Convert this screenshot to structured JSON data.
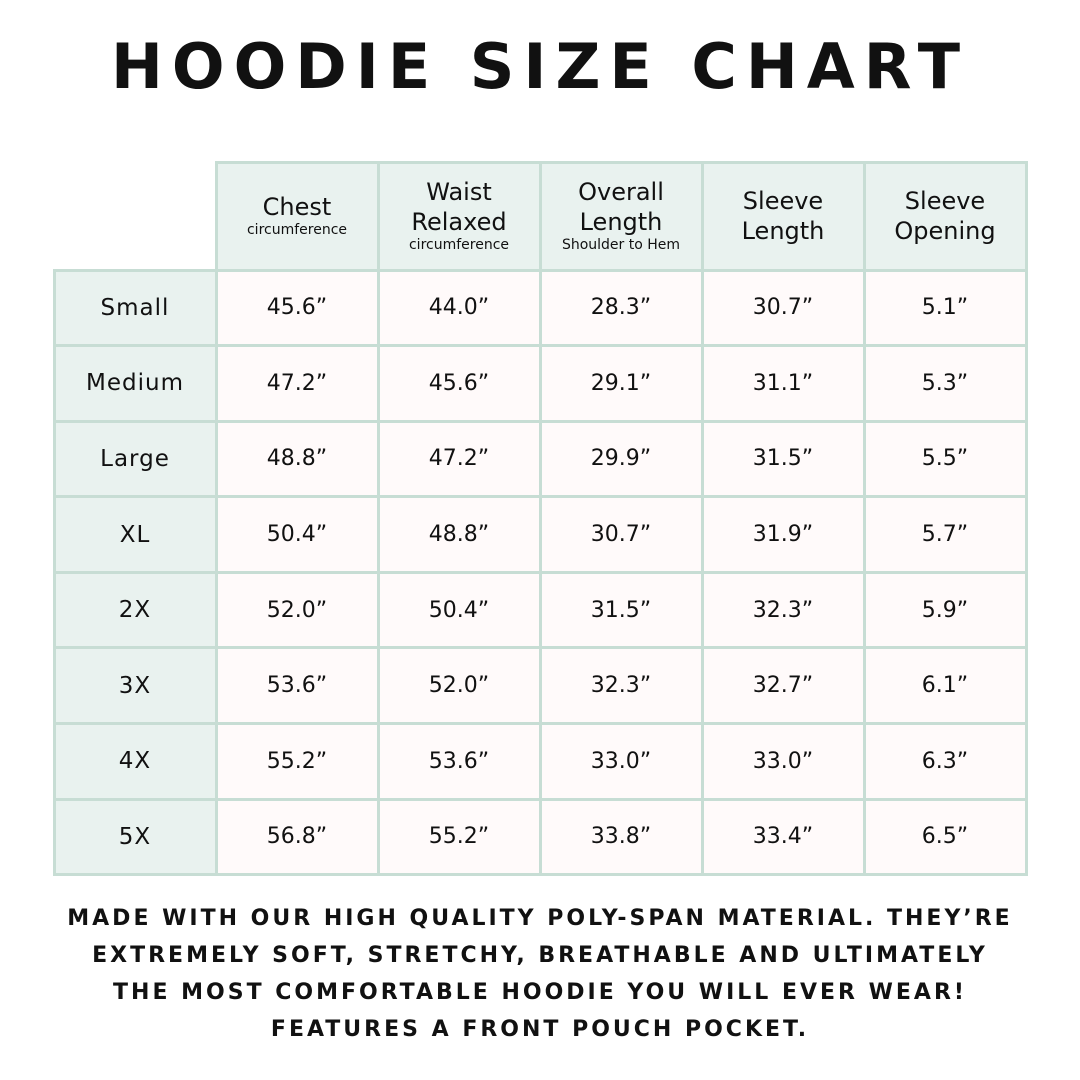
{
  "title": "HOODIE SIZE CHART",
  "colors": {
    "header_bg": "#e9f2ef",
    "border": "#c7ddd4",
    "text": "#111111"
  },
  "table": {
    "columns": [
      {
        "label": "Chest",
        "sub": "circumference"
      },
      {
        "label": "Waist Relaxed",
        "sub": "circumference"
      },
      {
        "label": "Overall Length",
        "sub": "Shoulder to Hem"
      },
      {
        "label": "Sleeve Length",
        "sub": ""
      },
      {
        "label": "Sleeve Opening",
        "sub": ""
      }
    ],
    "rows": [
      {
        "size": "Small",
        "values": [
          "45.6”",
          "44.0”",
          "28.3”",
          "30.7”",
          "5.1”"
        ]
      },
      {
        "size": "Medium",
        "values": [
          "47.2”",
          "45.6”",
          "29.1”",
          "31.1”",
          "5.3”"
        ]
      },
      {
        "size": "Large",
        "values": [
          "48.8”",
          "47.2”",
          "29.9”",
          "31.5”",
          "5.5”"
        ]
      },
      {
        "size": "XL",
        "values": [
          "50.4”",
          "48.8”",
          "30.7”",
          "31.9”",
          "5.7”"
        ]
      },
      {
        "size": "2X",
        "values": [
          "52.0”",
          "50.4”",
          "31.5”",
          "32.3”",
          "5.9”"
        ]
      },
      {
        "size": "3X",
        "values": [
          "53.6”",
          "52.0”",
          "32.3”",
          "32.7”",
          "6.1”"
        ]
      },
      {
        "size": "4X",
        "values": [
          "55.2”",
          "53.6”",
          "33.0”",
          "33.0”",
          "6.3”"
        ]
      },
      {
        "size": "5X",
        "values": [
          "56.8”",
          "55.2”",
          "33.8”",
          "33.4”",
          "6.5”"
        ]
      }
    ]
  },
  "footer": {
    "lines": [
      "Made with our high quality poly-span material. They’re",
      "extremely soft, stretchy, breathable and ultimately",
      "the most comfortable hoodie you will ever wear!",
      "Features a front pouch pocket."
    ]
  }
}
